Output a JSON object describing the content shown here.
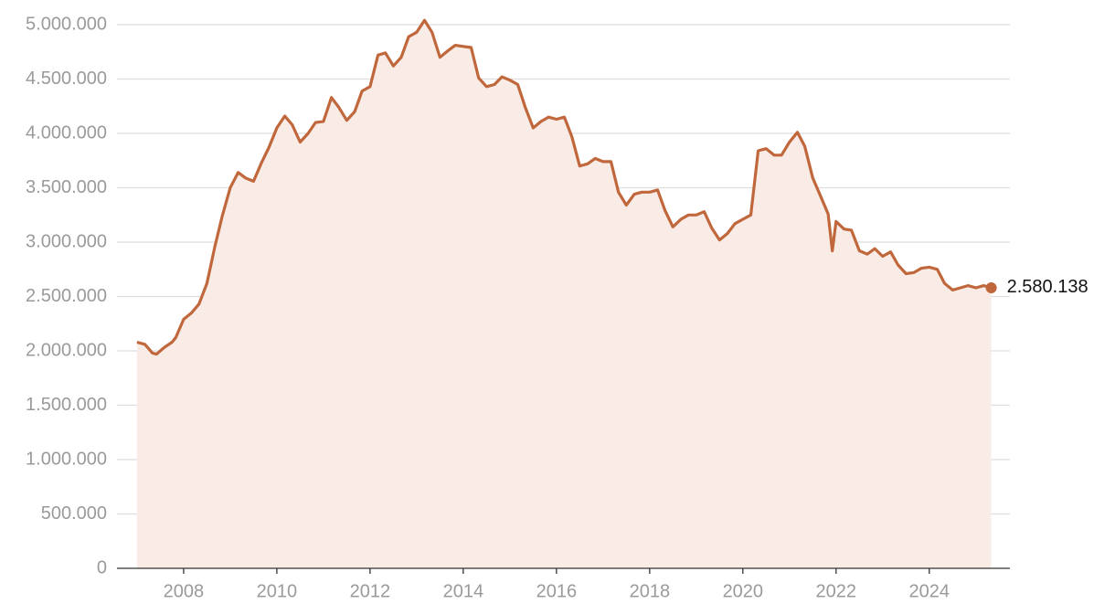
{
  "chart_data": {
    "type": "area",
    "x": [
      2007,
      2007.17,
      2007.33,
      2007.42,
      2007.58,
      2007.75,
      2007.83,
      2008,
      2008.17,
      2008.33,
      2008.5,
      2008.67,
      2008.83,
      2009,
      2009.17,
      2009.33,
      2009.5,
      2009.67,
      2009.83,
      2010,
      2010.17,
      2010.33,
      2010.5,
      2010.67,
      2010.83,
      2011,
      2011.17,
      2011.33,
      2011.5,
      2011.67,
      2011.83,
      2012,
      2012.17,
      2012.33,
      2012.5,
      2012.67,
      2012.83,
      2013,
      2013.17,
      2013.33,
      2013.5,
      2013.67,
      2013.83,
      2014,
      2014.17,
      2014.33,
      2014.5,
      2014.67,
      2014.83,
      2015,
      2015.17,
      2015.33,
      2015.5,
      2015.67,
      2015.83,
      2016,
      2016.17,
      2016.33,
      2016.5,
      2016.67,
      2016.83,
      2017,
      2017.17,
      2017.33,
      2017.5,
      2017.67,
      2017.83,
      2018,
      2018.17,
      2018.33,
      2018.5,
      2018.67,
      2018.83,
      2019,
      2019.17,
      2019.33,
      2019.5,
      2019.67,
      2019.83,
      2020,
      2020.17,
      2020.33,
      2020.5,
      2020.67,
      2020.83,
      2021,
      2021.17,
      2021.33,
      2021.5,
      2021.67,
      2021.83,
      2021.92,
      2022,
      2022.17,
      2022.33,
      2022.5,
      2022.67,
      2022.83,
      2023,
      2023.17,
      2023.33,
      2023.5,
      2023.67,
      2023.83,
      2024,
      2024.17,
      2024.33,
      2024.5,
      2024.67,
      2024.83,
      2025,
      2025.17,
      2025.33
    ],
    "values": [
      2080000,
      2060000,
      1980000,
      1970000,
      2030000,
      2080000,
      2120000,
      2290000,
      2350000,
      2430000,
      2620000,
      2960000,
      3240000,
      3500000,
      3640000,
      3590000,
      3560000,
      3730000,
      3870000,
      4050000,
      4160000,
      4080000,
      3920000,
      4000000,
      4100000,
      4110000,
      4330000,
      4240000,
      4120000,
      4200000,
      4390000,
      4430000,
      4720000,
      4740000,
      4620000,
      4700000,
      4890000,
      4930000,
      5040000,
      4930000,
      4700000,
      4760000,
      4810000,
      4800000,
      4790000,
      4510000,
      4430000,
      4450000,
      4520000,
      4490000,
      4450000,
      4240000,
      4050000,
      4110000,
      4150000,
      4130000,
      4150000,
      3970000,
      3700000,
      3720000,
      3770000,
      3740000,
      3740000,
      3460000,
      3340000,
      3440000,
      3460000,
      3460000,
      3480000,
      3290000,
      3140000,
      3210000,
      3250000,
      3250000,
      3280000,
      3130000,
      3020000,
      3080000,
      3170000,
      3210000,
      3250000,
      3840000,
      3860000,
      3800000,
      3800000,
      3920000,
      4010000,
      3880000,
      3590000,
      3420000,
      3260000,
      2920000,
      3190000,
      3120000,
      3110000,
      2920000,
      2890000,
      2940000,
      2870000,
      2910000,
      2790000,
      2710000,
      2720000,
      2760000,
      2770000,
      2750000,
      2620000,
      2560000,
      2580000,
      2600000,
      2580000,
      2600000,
      2580138
    ],
    "value_labels": [
      null,
      null,
      null,
      null,
      null,
      null,
      null,
      null,
      null,
      null,
      null,
      null,
      null,
      null,
      null,
      null,
      null,
      null,
      null,
      null,
      null,
      null,
      null,
      null,
      null,
      null,
      null,
      null,
      null,
      null,
      null,
      null,
      null,
      null,
      null,
      null,
      null,
      null,
      null,
      null,
      null,
      null,
      null,
      null,
      null,
      null,
      null,
      null,
      null,
      null,
      null,
      null,
      null,
      null,
      null,
      null,
      null,
      null,
      null,
      null,
      null,
      null,
      null,
      null,
      null,
      null,
      null,
      null,
      null,
      null,
      null,
      null,
      null,
      null,
      null,
      null,
      null,
      null,
      null,
      null,
      null,
      null,
      null,
      null,
      null,
      null,
      null,
      null,
      null,
      null,
      null,
      null,
      null,
      null,
      null,
      null,
      null,
      null,
      null,
      null,
      null,
      null,
      null,
      null,
      null,
      null,
      null,
      null,
      null,
      null,
      null,
      null,
      "2.580.138"
    ],
    "color": "#c0673c",
    "area_color": "#f9ece7",
    "xlim": [
      2006.57,
      2025.73
    ],
    "xticks": [
      2008,
      2010,
      2012,
      2014,
      2016,
      2018,
      2020,
      2022,
      2024
    ],
    "ylim": [
      0,
      5000000
    ],
    "yticks": [
      0,
      {
        "value": 500000,
        "label": "500.000"
      },
      {
        "value": 1000000,
        "label": "1.000.000"
      },
      {
        "value": 1500000,
        "label": "1.500.000"
      },
      {
        "value": 2000000,
        "label": "2.000.000"
      },
      {
        "value": 2500000,
        "label": "2.500.000"
      },
      {
        "value": 3000000,
        "label": "3.000.000"
      },
      {
        "value": 3500000,
        "label": "3.500.000"
      },
      {
        "value": 4000000,
        "label": "4.000.000"
      },
      {
        "value": 4500000,
        "label": "4.500.000"
      },
      {
        "value": 5000000,
        "label": "5.000.000"
      }
    ],
    "grid": true
  }
}
